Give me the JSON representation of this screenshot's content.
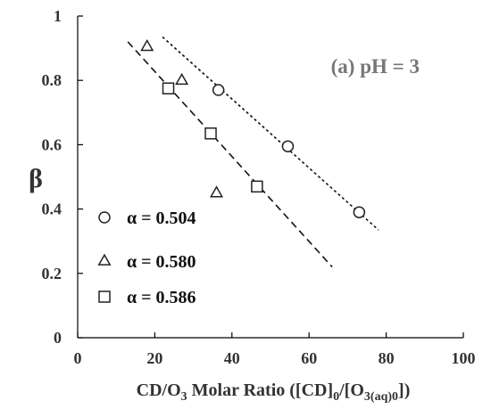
{
  "chart_data": {
    "type": "scatter",
    "annotation": "(a) pH = 3",
    "xlabel": {
      "main": "CD/O",
      "sub1": "3",
      "mid": " Molar Ratio ([CD]",
      "sub2": "0",
      "mid2": "/[O",
      "sub3": "3(aq)0",
      "end": "])"
    },
    "ylabel": "β",
    "xlim": [
      0,
      100
    ],
    "ylim": [
      0,
      1
    ],
    "xticks": [
      "0",
      "20",
      "40",
      "60",
      "80",
      "100"
    ],
    "yticks": [
      "0",
      "0.2",
      "0.4",
      "0.6",
      "0.8",
      "1"
    ],
    "grid": false,
    "legend_position": "bottom-left",
    "series": [
      {
        "name": "α = 0.504",
        "marker": "circle",
        "x": [
          36.5,
          54.5,
          73
        ],
        "y": [
          0.77,
          0.595,
          0.39
        ],
        "fit": {
          "style": "dotted",
          "x": [
            22,
            78
          ],
          "y": [
            0.935,
            0.335
          ]
        }
      },
      {
        "name": "α = 0.580",
        "marker": "triangle",
        "x": [
          18,
          27,
          36
        ],
        "y": [
          0.905,
          0.8,
          0.45
        ],
        "fit": null
      },
      {
        "name": "α = 0.586",
        "marker": "square",
        "x": [
          23.5,
          34.5,
          46.5
        ],
        "y": [
          0.775,
          0.635,
          0.47
        ],
        "fit": {
          "style": "dashed",
          "x": [
            13,
            66
          ],
          "y": [
            0.92,
            0.22
          ]
        }
      }
    ]
  }
}
